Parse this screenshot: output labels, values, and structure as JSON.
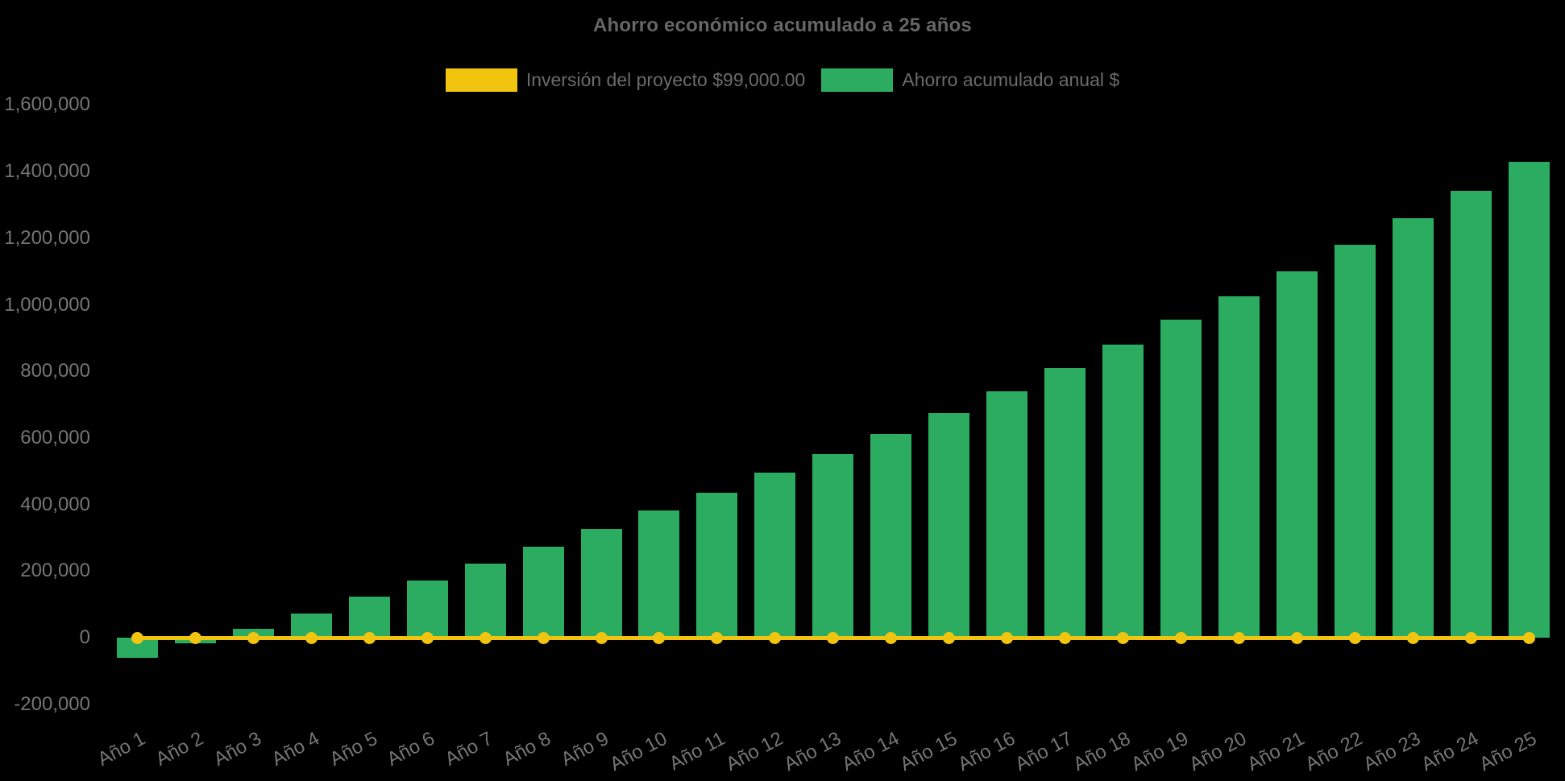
{
  "title": "Ahorro económico acumulado a 25 años",
  "chart_data": {
    "type": "bar",
    "title": "Ahorro económico acumulado a 25 años",
    "categories": [
      "Año 1",
      "Año 2",
      "Año 3",
      "Año 4",
      "Año 5",
      "Año 6",
      "Año 7",
      "Año 8",
      "Año 9",
      "Año 10",
      "Año 11",
      "Año 12",
      "Año 13",
      "Año 14",
      "Año 15",
      "Año 16",
      "Año 17",
      "Año 18",
      "Año 19",
      "Año 20",
      "Año 21",
      "Año 22",
      "Año 23",
      "Año 24",
      "Año 25"
    ],
    "series": [
      {
        "name": "Inversión del proyecto $99,000.00",
        "type": "line",
        "color": "#F1C40F",
        "values": [
          0,
          0,
          0,
          0,
          0,
          0,
          0,
          0,
          0,
          0,
          0,
          0,
          0,
          0,
          0,
          0,
          0,
          0,
          0,
          0,
          0,
          0,
          0,
          0,
          0
        ]
      },
      {
        "name": "Ahorro acumulado anual $",
        "type": "bar",
        "color": "#2BAC60",
        "values": [
          -60000,
          -17000,
          27000,
          72000,
          123000,
          171000,
          222000,
          273000,
          326000,
          382000,
          436000,
          495000,
          552000,
          612000,
          675000,
          741000,
          810000,
          881000,
          955000,
          1026000,
          1101000,
          1179000,
          1260000,
          1343000,
          1429000
        ]
      }
    ],
    "y_ticks": [
      {
        "value": 1600000,
        "label": "1,600,000"
      },
      {
        "value": 1400000,
        "label": "1,400,000"
      },
      {
        "value": 1200000,
        "label": "1,200,000"
      },
      {
        "value": 1000000,
        "label": "1,000,000"
      },
      {
        "value": 800000,
        "label": "800,000"
      },
      {
        "value": 600000,
        "label": "600,000"
      },
      {
        "value": 400000,
        "label": "400,000"
      },
      {
        "value": 200000,
        "label": "200,000"
      },
      {
        "value": 0,
        "label": "0"
      },
      {
        "value": -200000,
        "label": "-200,000"
      }
    ],
    "ylim": [
      -200000,
      1600000
    ],
    "xlabel": "",
    "ylabel": "",
    "grid": false,
    "legend_position": "top",
    "background": "#000000",
    "text_color": "#6b6b6b"
  }
}
